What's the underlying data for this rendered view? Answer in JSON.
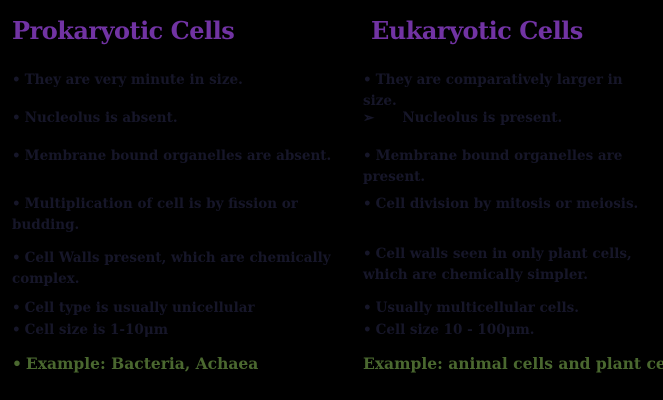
{
  "colors": {
    "background": "#000000",
    "heading_purple": "#7133a3",
    "body_text": "#161629",
    "example_green": "#4a682f"
  },
  "left": {
    "title": "Prokaryotic Cells",
    "items": [
      {
        "bullet": "•",
        "text": "They are very minute in size."
      },
      {
        "bullet": "•",
        "text": "Nucleolus is absent."
      },
      {
        "bullet": "•",
        "text": "Membrane bound organelles are absent."
      },
      {
        "bullet": "•",
        "text": "Multiplication of cell is by fission or budding."
      },
      {
        "bullet": "•",
        "text": "Cell Walls present, which are chemically complex."
      },
      {
        "bullet": "•",
        "text": "Cell type is usually unicellular"
      },
      {
        "bullet": "•",
        "text": "Cell size is 1-10μm"
      }
    ],
    "example": {
      "bullet": "•",
      "text": "Example: Bacteria, Achaea"
    }
  },
  "right": {
    "title": "Eukaryotic Cells",
    "items": [
      {
        "bullet": "•",
        "text": "They are comparatively larger in size."
      },
      {
        "bullet": "➢",
        "text": "Nucleolus is present."
      },
      {
        "bullet": "•",
        "text": "Membrane bound organelles are present."
      },
      {
        "bullet": "•",
        "text": "Cell division by mitosis or meiosis."
      },
      {
        "bullet": "•",
        "text": "Cell walls seen in only plant cells, which are chemically simpler."
      },
      {
        "bullet": "•",
        "text": "Usually multicellular cells."
      },
      {
        "bullet": "•",
        "text": "Cell size 10 - 100μm."
      }
    ],
    "example": {
      "bullet": "",
      "text": "Example: animal cells and plant cells."
    }
  }
}
